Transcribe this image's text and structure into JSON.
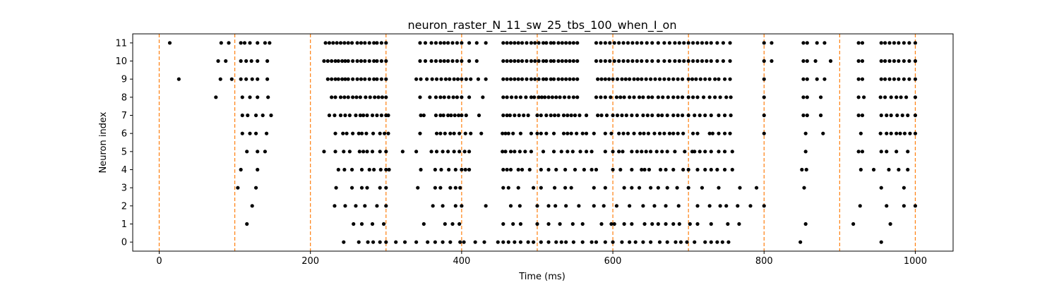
{
  "chart_data": {
    "type": "scatter",
    "title": "neuron_raster_N_11_sw_25_tbs_100_when_I_on",
    "xlabel": "Time (ms)",
    "ylabel": "Neuron index",
    "xlim": [
      -35,
      1050
    ],
    "ylim": [
      -0.5,
      11.5
    ],
    "xticks": [
      0,
      200,
      400,
      600,
      800,
      1000
    ],
    "yticks": [
      0,
      1,
      2,
      3,
      4,
      5,
      6,
      7,
      8,
      9,
      10,
      11
    ],
    "grid": false,
    "marker_color": "#000000",
    "vline_color": "#ff7f0e",
    "vlines": [
      0,
      100,
      200,
      300,
      400,
      500,
      600,
      700,
      800,
      900,
      1000
    ],
    "spikes": [
      {
        "neuron": 0,
        "times": [
          244,
          264,
          276,
          283,
          292,
          300,
          313,
          325,
          340,
          355,
          365,
          375,
          385,
          398,
          403,
          418,
          430,
          448,
          455,
          462,
          470,
          478,
          488,
          495,
          505,
          515,
          525,
          532,
          538,
          548,
          560,
          572,
          578,
          590,
          600,
          612,
          622,
          630,
          640,
          650,
          662,
          672,
          683,
          690,
          698,
          708,
          722,
          730,
          738,
          745,
          753,
          848,
          955
        ]
      },
      {
        "neuron": 1,
        "times": [
          116,
          257,
          268,
          282,
          297,
          350,
          378,
          388,
          397,
          455,
          468,
          478,
          500,
          515,
          530,
          547,
          560,
          585,
          598,
          602,
          615,
          625,
          642,
          652,
          660,
          670,
          680,
          688,
          702,
          712,
          730,
          752,
          767,
          855,
          918,
          967
        ]
      },
      {
        "neuron": 2,
        "times": [
          123,
          232,
          246,
          260,
          272,
          288,
          300,
          362,
          375,
          392,
          400,
          432,
          465,
          477,
          500,
          515,
          524,
          538,
          555,
          575,
          588,
          605,
          622,
          640,
          655,
          670,
          687,
          712,
          728,
          742,
          750,
          765,
          782,
          800,
          927,
          962,
          985,
          1000
        ]
      },
      {
        "neuron": 3,
        "times": [
          104,
          128,
          234,
          255,
          268,
          275,
          292,
          300,
          342,
          365,
          372,
          385,
          392,
          398,
          455,
          462,
          475,
          495,
          505,
          523,
          537,
          545,
          575,
          590,
          615,
          625,
          635,
          650,
          660,
          672,
          685,
          700,
          718,
          740,
          768,
          790,
          853,
          955,
          985
        ]
      },
      {
        "neuron": 4,
        "times": [
          108,
          130,
          237,
          245,
          255,
          268,
          278,
          284,
          293,
          300,
          304,
          346,
          365,
          373,
          383,
          392,
          400,
          405,
          410,
          455,
          460,
          465,
          475,
          480,
          490,
          505,
          515,
          525,
          537,
          550,
          562,
          572,
          578,
          600,
          610,
          625,
          638,
          642,
          648,
          663,
          670,
          680,
          693,
          700,
          712,
          722,
          730,
          738,
          748,
          758,
          850,
          856,
          928,
          945,
          965,
          978,
          990
        ]
      },
      {
        "neuron": 5,
        "times": [
          116,
          130,
          140,
          218,
          233,
          244,
          252,
          265,
          270,
          275,
          282,
          292,
          300,
          322,
          340,
          360,
          367,
          375,
          382,
          390,
          397,
          404,
          410,
          454,
          458,
          465,
          470,
          477,
          484,
          492,
          508,
          522,
          532,
          540,
          547,
          557,
          565,
          572,
          590,
          600,
          608,
          613,
          625,
          632,
          638,
          644,
          650,
          658,
          665,
          672,
          682,
          695,
          705,
          708,
          715,
          722,
          730,
          740,
          748,
          758,
          855,
          925,
          930,
          955,
          962,
          975,
          990
        ]
      },
      {
        "neuron": 6,
        "times": [
          110,
          120,
          128,
          142,
          233,
          243,
          248,
          256,
          264,
          268,
          274,
          283,
          292,
          298,
          303,
          345,
          367,
          372,
          378,
          385,
          390,
          397,
          405,
          412,
          426,
          454,
          458,
          462,
          468,
          478,
          492,
          500,
          505,
          512,
          522,
          535,
          540,
          545,
          552,
          560,
          565,
          575,
          590,
          598,
          608,
          614,
          620,
          628,
          636,
          641,
          647,
          655,
          662,
          668,
          675,
          680,
          686,
          693,
          706,
          712,
          728,
          732,
          740,
          748,
          755,
          800,
          855,
          878,
          928,
          954,
          962,
          968,
          975,
          980,
          986,
          993,
          1000
        ]
      },
      {
        "neuron": 7,
        "times": [
          110,
          117,
          128,
          137,
          148,
          225,
          232,
          240,
          246,
          252,
          260,
          266,
          270,
          275,
          282,
          288,
          294,
          300,
          303,
          346,
          350,
          366,
          372,
          376,
          382,
          386,
          391,
          396,
          400,
          406,
          423,
          455,
          460,
          464,
          470,
          476,
          482,
          488,
          500,
          505,
          512,
          518,
          523,
          528,
          535,
          540,
          545,
          550,
          556,
          565,
          580,
          585,
          592,
          600,
          606,
          612,
          618,
          625,
          632,
          640,
          646,
          652,
          660,
          665,
          672,
          680,
          686,
          692,
          700,
          708,
          715,
          722,
          730,
          740,
          748,
          756,
          800,
          852,
          857,
          875,
          925,
          930,
          955,
          962,
          968,
          976,
          983,
          990,
          1000
        ]
      },
      {
        "neuron": 8,
        "times": [
          75,
          110,
          120,
          130,
          144,
          228,
          233,
          240,
          245,
          250,
          256,
          261,
          266,
          273,
          279,
          285,
          290,
          295,
          300,
          345,
          358,
          366,
          372,
          377,
          383,
          389,
          394,
          400,
          410,
          428,
          455,
          460,
          466,
          472,
          478,
          485,
          492,
          496,
          502,
          506,
          510,
          515,
          520,
          525,
          530,
          536,
          542,
          548,
          553,
          578,
          584,
          590,
          597,
          605,
          610,
          615,
          622,
          628,
          635,
          640,
          647,
          652,
          660,
          666,
          673,
          680,
          686,
          692,
          700,
          706,
          712,
          720,
          728,
          735,
          742,
          750,
          756,
          800,
          852,
          857,
          875,
          925,
          932,
          954,
          960,
          968,
          975,
          981,
          988,
          1000
        ]
      },
      {
        "neuron": 9,
        "times": [
          26,
          81,
          96,
          108,
          115,
          123,
          130,
          143,
          223,
          228,
          233,
          237,
          242,
          246,
          250,
          256,
          262,
          267,
          272,
          278,
          284,
          288,
          294,
          300,
          340,
          346,
          354,
          361,
          367,
          373,
          379,
          384,
          390,
          395,
          400,
          406,
          412,
          422,
          432,
          455,
          460,
          465,
          470,
          475,
          480,
          486,
          492,
          497,
          502,
          508,
          512,
          518,
          522,
          528,
          533,
          538,
          543,
          548,
          553,
          580,
          585,
          590,
          595,
          600,
          606,
          612,
          617,
          622,
          628,
          633,
          638,
          644,
          650,
          656,
          662,
          668,
          674,
          680,
          686,
          692,
          700,
          705,
          710,
          716,
          722,
          728,
          735,
          740,
          748,
          755,
          800,
          852,
          857,
          870,
          880,
          925,
          930,
          955,
          960,
          966,
          972,
          978,
          985,
          992,
          1000
        ]
      },
      {
        "neuron": 10,
        "times": [
          78,
          88,
          108,
          115,
          122,
          130,
          143,
          218,
          223,
          228,
          233,
          237,
          242,
          246,
          250,
          256,
          262,
          267,
          272,
          278,
          284,
          288,
          294,
          300,
          345,
          352,
          360,
          366,
          372,
          377,
          382,
          388,
          394,
          400,
          410,
          420,
          455,
          460,
          465,
          470,
          475,
          480,
          486,
          492,
          497,
          502,
          508,
          512,
          518,
          522,
          528,
          533,
          538,
          543,
          548,
          553,
          578,
          584,
          590,
          596,
          602,
          608,
          614,
          620,
          626,
          632,
          638,
          645,
          652,
          660,
          668,
          675,
          682,
          688,
          694,
          700,
          706,
          712,
          718,
          724,
          730,
          738,
          746,
          755,
          800,
          810,
          852,
          857,
          868,
          888,
          925,
          930,
          955,
          960,
          966,
          972,
          978,
          985,
          992,
          1000
        ]
      },
      {
        "neuron": 11,
        "times": [
          14,
          82,
          92,
          108,
          113,
          120,
          130,
          140,
          146,
          220,
          225,
          230,
          235,
          240,
          245,
          250,
          255,
          262,
          267,
          272,
          278,
          284,
          288,
          294,
          300,
          345,
          352,
          360,
          366,
          372,
          377,
          382,
          388,
          394,
          400,
          410,
          420,
          432,
          455,
          460,
          465,
          470,
          475,
          480,
          486,
          492,
          497,
          502,
          508,
          512,
          518,
          522,
          528,
          533,
          538,
          543,
          548,
          553,
          578,
          584,
          590,
          596,
          602,
          608,
          614,
          620,
          626,
          632,
          638,
          645,
          652,
          660,
          668,
          675,
          682,
          688,
          694,
          700,
          706,
          712,
          718,
          724,
          730,
          738,
          746,
          755,
          800,
          810,
          852,
          857,
          870,
          880,
          925,
          930,
          955,
          960,
          966,
          972,
          978,
          985,
          992,
          1000
        ]
      }
    ]
  }
}
